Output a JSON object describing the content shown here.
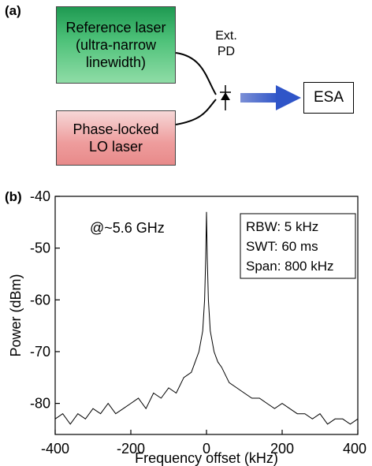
{
  "panel_a": {
    "label": "(a)",
    "reference_box": {
      "lines": [
        "Reference laser",
        "(ultra-narrow",
        "linewidth)"
      ]
    },
    "lo_box": {
      "lines": [
        "Phase-locked",
        "LO laser"
      ]
    },
    "pd_label": {
      "lines": [
        "Ext.",
        "PD"
      ]
    },
    "esa_label": "ESA",
    "icons": [
      "photodiode-icon",
      "arrow-right-icon"
    ]
  },
  "chart_data": {
    "panel_label": "(b)",
    "type": "line",
    "title": "",
    "xlabel": "Frequency offset (kHz)",
    "ylabel": "Power (dBm)",
    "xlim": [
      -400,
      400
    ],
    "ylim": [
      -86,
      -40
    ],
    "xticks": [
      -400,
      -200,
      0,
      200,
      400
    ],
    "yticks": [
      -80,
      -70,
      -60,
      -50,
      -40
    ],
    "grid": false,
    "annotation": "@~5.6 GHz",
    "info_box": [
      "RBW: 5 kHz",
      "SWT: 60 ms",
      "Span: 800 kHz"
    ],
    "series": [
      {
        "color": "#000000",
        "x": [
          -400,
          -380,
          -360,
          -340,
          -320,
          -300,
          -280,
          -260,
          -240,
          -220,
          -200,
          -180,
          -160,
          -140,
          -120,
          -100,
          -80,
          -60,
          -40,
          -30,
          -20,
          -10,
          -5,
          -2,
          0,
          2,
          5,
          10,
          20,
          30,
          40,
          60,
          80,
          100,
          120,
          140,
          160,
          180,
          200,
          220,
          240,
          260,
          280,
          300,
          320,
          340,
          360,
          380,
          400
        ],
        "y": [
          -83,
          -82,
          -84,
          -82,
          -83,
          -81,
          -82,
          -80,
          -82,
          -81,
          -80,
          -79,
          -81,
          -78,
          -79,
          -77,
          -78,
          -75,
          -74,
          -72,
          -70,
          -66,
          -60,
          -52,
          -43,
          -52,
          -60,
          -66,
          -70,
          -72,
          -73,
          -76,
          -77,
          -78,
          -79,
          -79,
          -80,
          -81,
          -80,
          -81,
          -82,
          -82,
          -83,
          -82,
          -84,
          -83,
          -83,
          -84,
          -83
        ]
      }
    ]
  }
}
